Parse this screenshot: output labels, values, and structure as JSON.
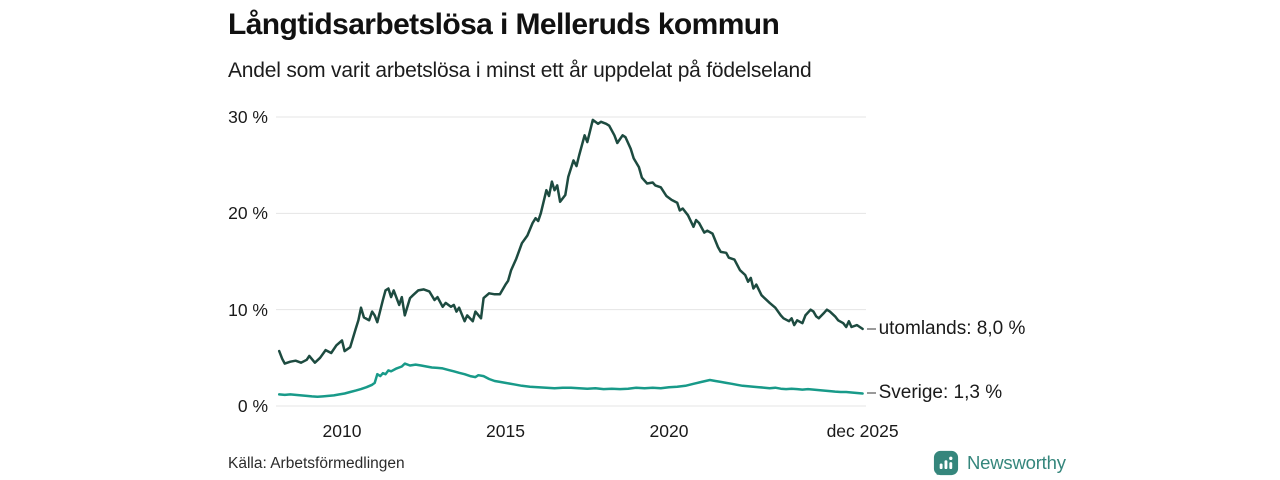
{
  "header": {
    "title": "Långtidsarbetslösa i Melleruds kommun",
    "subtitle": "Andel som varit arbetslösa i minst ett år uppdelat på födelseland"
  },
  "chart_data": {
    "type": "line",
    "title": "Långtidsarbetslösa i Melleruds kommun",
    "subtitle": "Andel som varit arbetslösa i minst ett år uppdelat på födelseland",
    "xlabel": "",
    "ylabel": "",
    "xlim": [
      2008,
      2026
    ],
    "ylim": [
      0,
      30
    ],
    "grid": "horizontal",
    "legend_position": "end-of-line",
    "yticks": [
      {
        "value": 0,
        "label": "0 %"
      },
      {
        "value": 10,
        "label": "10 %"
      },
      {
        "value": 20,
        "label": "20 %"
      },
      {
        "value": 30,
        "label": "30 %"
      }
    ],
    "xticks": [
      {
        "value": 2010,
        "label": "2010"
      },
      {
        "value": 2015,
        "label": "2015"
      },
      {
        "value": 2020,
        "label": "2020"
      },
      {
        "value": 2025.92,
        "label": "dec 2025"
      }
    ],
    "series": [
      {
        "id": "utomlands",
        "name": "utomlands",
        "color": "#1d4b40",
        "end_label": "utomlands: 8,0 %",
        "end_value": "8,0 %",
        "points": [
          [
            2008.08,
            5.7
          ],
          [
            2008.17,
            4.9
          ],
          [
            2008.25,
            4.4
          ],
          [
            2008.42,
            4.6
          ],
          [
            2008.58,
            4.7
          ],
          [
            2008.75,
            4.5
          ],
          [
            2008.92,
            4.8
          ],
          [
            2009.0,
            5.2
          ],
          [
            2009.17,
            4.5
          ],
          [
            2009.33,
            5.0
          ],
          [
            2009.5,
            5.8
          ],
          [
            2009.67,
            5.5
          ],
          [
            2009.83,
            6.3
          ],
          [
            2010.0,
            6.8
          ],
          [
            2010.08,
            5.7
          ],
          [
            2010.25,
            6.1
          ],
          [
            2010.42,
            8.0
          ],
          [
            2010.5,
            8.9
          ],
          [
            2010.58,
            10.2
          ],
          [
            2010.67,
            9.2
          ],
          [
            2010.83,
            8.9
          ],
          [
            2010.92,
            9.8
          ],
          [
            2011.0,
            9.4
          ],
          [
            2011.08,
            8.7
          ],
          [
            2011.25,
            11.0
          ],
          [
            2011.33,
            12.0
          ],
          [
            2011.42,
            12.2
          ],
          [
            2011.5,
            11.3
          ],
          [
            2011.58,
            12.0
          ],
          [
            2011.75,
            10.5
          ],
          [
            2011.83,
            11.3
          ],
          [
            2011.92,
            9.4
          ],
          [
            2012.08,
            11.2
          ],
          [
            2012.17,
            11.5
          ],
          [
            2012.33,
            12.0
          ],
          [
            2012.5,
            12.1
          ],
          [
            2012.67,
            11.9
          ],
          [
            2012.83,
            11.0
          ],
          [
            2012.92,
            11.3
          ],
          [
            2013.08,
            10.3
          ],
          [
            2013.17,
            10.7
          ],
          [
            2013.33,
            10.3
          ],
          [
            2013.42,
            10.5
          ],
          [
            2013.5,
            9.8
          ],
          [
            2013.58,
            10.2
          ],
          [
            2013.75,
            8.8
          ],
          [
            2013.83,
            9.4
          ],
          [
            2014.0,
            8.8
          ],
          [
            2014.08,
            9.8
          ],
          [
            2014.25,
            9.1
          ],
          [
            2014.33,
            11.2
          ],
          [
            2014.5,
            11.7
          ],
          [
            2014.67,
            11.6
          ],
          [
            2014.83,
            11.6
          ],
          [
            2015.0,
            12.6
          ],
          [
            2015.08,
            13.0
          ],
          [
            2015.17,
            14.1
          ],
          [
            2015.33,
            15.3
          ],
          [
            2015.5,
            16.9
          ],
          [
            2015.67,
            17.7
          ],
          [
            2015.83,
            19.0
          ],
          [
            2015.92,
            19.5
          ],
          [
            2016.0,
            19.2
          ],
          [
            2016.08,
            20.0
          ],
          [
            2016.25,
            22.4
          ],
          [
            2016.33,
            21.8
          ],
          [
            2016.42,
            23.3
          ],
          [
            2016.5,
            22.4
          ],
          [
            2016.58,
            22.9
          ],
          [
            2016.67,
            21.2
          ],
          [
            2016.83,
            21.9
          ],
          [
            2016.92,
            23.8
          ],
          [
            2017.08,
            25.5
          ],
          [
            2017.17,
            24.9
          ],
          [
            2017.25,
            26.0
          ],
          [
            2017.42,
            28.1
          ],
          [
            2017.5,
            27.4
          ],
          [
            2017.67,
            29.7
          ],
          [
            2017.83,
            29.3
          ],
          [
            2017.92,
            29.5
          ],
          [
            2018.08,
            29.3
          ],
          [
            2018.17,
            29.1
          ],
          [
            2018.33,
            28.1
          ],
          [
            2018.42,
            27.3
          ],
          [
            2018.58,
            28.1
          ],
          [
            2018.67,
            27.9
          ],
          [
            2018.83,
            26.7
          ],
          [
            2018.92,
            25.7
          ],
          [
            2019.08,
            24.8
          ],
          [
            2019.17,
            23.7
          ],
          [
            2019.33,
            23.1
          ],
          [
            2019.5,
            23.2
          ],
          [
            2019.58,
            22.9
          ],
          [
            2019.75,
            22.7
          ],
          [
            2019.92,
            21.8
          ],
          [
            2020.08,
            21.4
          ],
          [
            2020.25,
            21.1
          ],
          [
            2020.33,
            20.3
          ],
          [
            2020.42,
            20.5
          ],
          [
            2020.58,
            19.8
          ],
          [
            2020.75,
            18.6
          ],
          [
            2020.83,
            19.3
          ],
          [
            2020.92,
            19.0
          ],
          [
            2021.08,
            18.0
          ],
          [
            2021.17,
            18.2
          ],
          [
            2021.33,
            17.9
          ],
          [
            2021.5,
            16.5
          ],
          [
            2021.58,
            16.0
          ],
          [
            2021.75,
            15.9
          ],
          [
            2021.83,
            15.4
          ],
          [
            2022.0,
            15.2
          ],
          [
            2022.17,
            14.1
          ],
          [
            2022.33,
            13.6
          ],
          [
            2022.42,
            12.9
          ],
          [
            2022.5,
            13.3
          ],
          [
            2022.58,
            12.2
          ],
          [
            2022.67,
            12.6
          ],
          [
            2022.83,
            11.5
          ],
          [
            2022.92,
            11.2
          ],
          [
            2023.08,
            10.7
          ],
          [
            2023.25,
            10.2
          ],
          [
            2023.42,
            9.4
          ],
          [
            2023.5,
            9.1
          ],
          [
            2023.67,
            8.8
          ],
          [
            2023.75,
            9.1
          ],
          [
            2023.83,
            8.4
          ],
          [
            2023.92,
            8.9
          ],
          [
            2024.08,
            8.6
          ],
          [
            2024.17,
            9.4
          ],
          [
            2024.33,
            10.0
          ],
          [
            2024.42,
            9.8
          ],
          [
            2024.5,
            9.3
          ],
          [
            2024.58,
            9.1
          ],
          [
            2024.75,
            9.7
          ],
          [
            2024.83,
            10.0
          ],
          [
            2024.92,
            9.8
          ],
          [
            2025.08,
            9.3
          ],
          [
            2025.17,
            8.9
          ],
          [
            2025.33,
            8.6
          ],
          [
            2025.42,
            8.2
          ],
          [
            2025.5,
            8.8
          ],
          [
            2025.58,
            8.2
          ],
          [
            2025.75,
            8.4
          ],
          [
            2025.92,
            8.0
          ]
        ]
      },
      {
        "id": "sverige",
        "name": "Sverige",
        "color": "#189a89",
        "end_label": "Sverige: 1,3 %",
        "end_value": "1,3 %",
        "points": [
          [
            2008.08,
            1.2
          ],
          [
            2008.25,
            1.15
          ],
          [
            2008.42,
            1.2
          ],
          [
            2008.58,
            1.15
          ],
          [
            2008.75,
            1.1
          ],
          [
            2008.92,
            1.05
          ],
          [
            2009.08,
            1.0
          ],
          [
            2009.25,
            0.95
          ],
          [
            2009.42,
            1.0
          ],
          [
            2009.58,
            1.05
          ],
          [
            2009.75,
            1.1
          ],
          [
            2009.92,
            1.2
          ],
          [
            2010.08,
            1.3
          ],
          [
            2010.25,
            1.45
          ],
          [
            2010.42,
            1.6
          ],
          [
            2010.58,
            1.75
          ],
          [
            2010.75,
            1.95
          ],
          [
            2010.92,
            2.2
          ],
          [
            2011.0,
            2.4
          ],
          [
            2011.08,
            3.3
          ],
          [
            2011.17,
            3.1
          ],
          [
            2011.25,
            3.4
          ],
          [
            2011.33,
            3.3
          ],
          [
            2011.42,
            3.7
          ],
          [
            2011.5,
            3.6
          ],
          [
            2011.67,
            3.9
          ],
          [
            2011.83,
            4.1
          ],
          [
            2011.92,
            4.4
          ],
          [
            2012.08,
            4.2
          ],
          [
            2012.25,
            4.3
          ],
          [
            2012.42,
            4.2
          ],
          [
            2012.58,
            4.1
          ],
          [
            2012.75,
            4.0
          ],
          [
            2012.92,
            3.95
          ],
          [
            2013.08,
            3.9
          ],
          [
            2013.25,
            3.75
          ],
          [
            2013.42,
            3.6
          ],
          [
            2013.58,
            3.45
          ],
          [
            2013.75,
            3.3
          ],
          [
            2013.92,
            3.1
          ],
          [
            2014.08,
            3.0
          ],
          [
            2014.17,
            3.2
          ],
          [
            2014.33,
            3.1
          ],
          [
            2014.5,
            2.8
          ],
          [
            2014.67,
            2.6
          ],
          [
            2014.83,
            2.5
          ],
          [
            2015.0,
            2.4
          ],
          [
            2015.25,
            2.25
          ],
          [
            2015.5,
            2.1
          ],
          [
            2015.75,
            2.0
          ],
          [
            2016.0,
            1.95
          ],
          [
            2016.25,
            1.9
          ],
          [
            2016.5,
            1.85
          ],
          [
            2016.75,
            1.9
          ],
          [
            2017.0,
            1.9
          ],
          [
            2017.25,
            1.85
          ],
          [
            2017.5,
            1.8
          ],
          [
            2017.75,
            1.85
          ],
          [
            2018.0,
            1.75
          ],
          [
            2018.25,
            1.8
          ],
          [
            2018.5,
            1.75
          ],
          [
            2018.75,
            1.8
          ],
          [
            2019.0,
            1.9
          ],
          [
            2019.25,
            1.85
          ],
          [
            2019.5,
            1.9
          ],
          [
            2019.75,
            1.85
          ],
          [
            2020.0,
            1.95
          ],
          [
            2020.25,
            2.0
          ],
          [
            2020.5,
            2.1
          ],
          [
            2020.75,
            2.3
          ],
          [
            2021.0,
            2.5
          ],
          [
            2021.25,
            2.7
          ],
          [
            2021.42,
            2.6
          ],
          [
            2021.58,
            2.5
          ],
          [
            2021.75,
            2.4
          ],
          [
            2021.92,
            2.3
          ],
          [
            2022.08,
            2.2
          ],
          [
            2022.25,
            2.1
          ],
          [
            2022.42,
            2.05
          ],
          [
            2022.58,
            2.0
          ],
          [
            2022.75,
            1.95
          ],
          [
            2022.92,
            1.9
          ],
          [
            2023.08,
            1.85
          ],
          [
            2023.25,
            1.9
          ],
          [
            2023.42,
            1.8
          ],
          [
            2023.58,
            1.75
          ],
          [
            2023.75,
            1.8
          ],
          [
            2023.92,
            1.75
          ],
          [
            2024.08,
            1.7
          ],
          [
            2024.25,
            1.75
          ],
          [
            2024.42,
            1.7
          ],
          [
            2024.58,
            1.65
          ],
          [
            2024.75,
            1.6
          ],
          [
            2024.92,
            1.55
          ],
          [
            2025.08,
            1.5
          ],
          [
            2025.25,
            1.45
          ],
          [
            2025.42,
            1.45
          ],
          [
            2025.58,
            1.4
          ],
          [
            2025.75,
            1.35
          ],
          [
            2025.92,
            1.3
          ]
        ]
      }
    ]
  },
  "footer": {
    "source": "Källa: Arbetsförmedlingen",
    "brand": "Newsworthy"
  },
  "colors": {
    "utomlands_line": "#1d4b40",
    "sverige_line": "#189a89",
    "gridline": "#e4e4e4",
    "text": "#1a1a1a",
    "brand_teal": "#35867c",
    "background": "#ffffff"
  }
}
